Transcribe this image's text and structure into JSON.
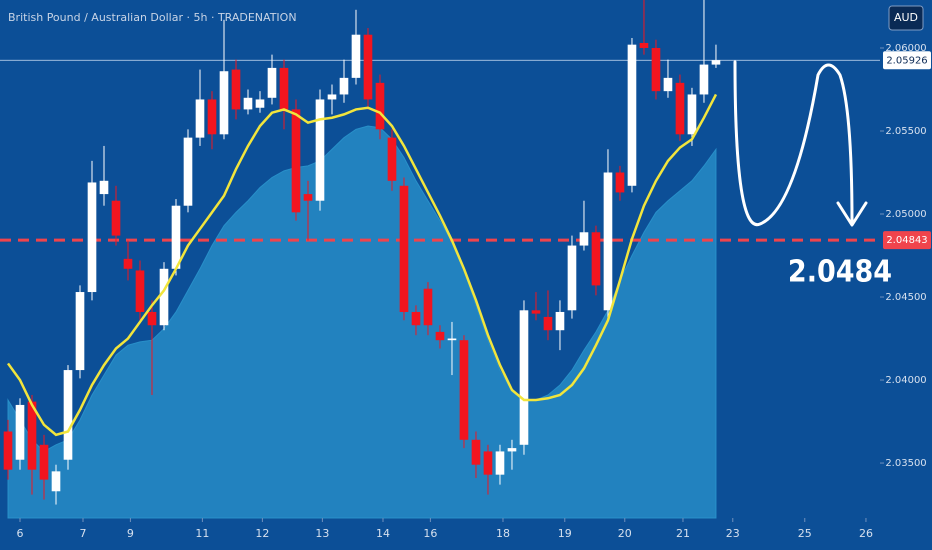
{
  "chart_data": {
    "type": "candlestick",
    "title": "British Pound / Australian Dollar · 5h · TRADENATION",
    "currency": "AUD",
    "annotation": "2.0484",
    "background": "#0c4f97",
    "up_color": "#ffffff",
    "down_color": "#f2151f",
    "level": 2.04843,
    "level_color": "#f0444c",
    "last_price": 2.05926,
    "grid": false,
    "ylim": [
      2.03169,
      2.06289
    ],
    "xlim": [
      -0.667,
      72.67
    ],
    "yticks": [
      {
        "value": 2.035,
        "label": "2.03500"
      },
      {
        "value": 2.04,
        "label": "2.04000"
      },
      {
        "value": 2.045,
        "label": "2.04500"
      },
      {
        "value": 2.05,
        "label": "2.05000"
      },
      {
        "value": 2.055,
        "label": "2.05500"
      },
      {
        "value": 2.06,
        "label": "2.06000"
      }
    ],
    "xticks": [
      {
        "value": 1,
        "label": "6"
      },
      {
        "value": 6.25,
        "label": "7"
      },
      {
        "value": 10.2,
        "label": "9"
      },
      {
        "value": 16.2,
        "label": "11"
      },
      {
        "value": 21.2,
        "label": "12"
      },
      {
        "value": 26.2,
        "label": "13"
      },
      {
        "value": 31.25,
        "label": "14"
      },
      {
        "value": 35.2,
        "label": "16"
      },
      {
        "value": 41.25,
        "label": "18"
      },
      {
        "value": 46.4,
        "label": "19"
      },
      {
        "value": 51.4,
        "label": "20"
      },
      {
        "value": 56.25,
        "label": "21"
      },
      {
        "value": 60.4,
        "label": "23"
      },
      {
        "value": 66.4,
        "label": "25"
      },
      {
        "value": 71.5,
        "label": "26"
      }
    ],
    "open": [
      2.0369,
      2.0352,
      2.0387,
      2.0361,
      2.0333,
      2.0352,
      2.0406,
      2.0453,
      2.0512,
      2.0508,
      2.0473,
      2.0466,
      2.0441,
      2.0433,
      2.0467,
      2.0505,
      2.0546,
      2.0569,
      2.0548,
      2.0587,
      2.0563,
      2.0564,
      2.057,
      2.0588,
      2.0563,
      2.0512,
      2.0508,
      2.0569,
      2.0572,
      2.0582,
      2.0608,
      2.0579,
      2.0546,
      2.0517,
      2.0441,
      2.0455,
      2.0429,
      2.0424,
      2.0424,
      2.0364,
      2.0357,
      2.0343,
      2.0357,
      2.0361,
      2.0442,
      2.0438,
      2.043,
      2.0442,
      2.0481,
      2.0489,
      2.0442,
      2.0525,
      2.0517,
      2.0603,
      2.06,
      2.0574,
      2.0579,
      2.0548,
      2.0572,
      2.059
    ],
    "high": [
      2.0376,
      2.0389,
      2.0391,
      2.0367,
      2.0349,
      2.0409,
      2.0457,
      2.0532,
      2.0541,
      2.0517,
      2.0484,
      2.0472,
      2.0448,
      2.0471,
      2.0509,
      2.0551,
      2.0587,
      2.0574,
      2.0617,
      2.0593,
      2.0575,
      2.0574,
      2.0596,
      2.0593,
      2.0569,
      2.052,
      2.0575,
      2.0578,
      2.0593,
      2.0623,
      2.0612,
      2.0584,
      2.0551,
      2.0522,
      2.0445,
      2.0459,
      2.0433,
      2.0435,
      2.0427,
      2.0369,
      2.0361,
      2.0361,
      2.0364,
      2.0448,
      2.0453,
      2.0454,
      2.0448,
      2.0487,
      2.0508,
      2.0493,
      2.0539,
      2.0529,
      2.0606,
      2.0629,
      2.0605,
      2.0593,
      2.0584,
      2.0576,
      2.0629,
      2.0602
    ],
    "low": [
      2.034,
      2.0346,
      2.0331,
      2.0328,
      2.0325,
      2.0346,
      2.0401,
      2.0448,
      2.0505,
      2.0481,
      2.046,
      2.0436,
      2.0391,
      2.043,
      2.0463,
      2.0501,
      2.0541,
      2.0539,
      2.0545,
      2.0557,
      2.056,
      2.0561,
      2.0566,
      2.0551,
      2.0496,
      2.0484,
      2.0502,
      2.056,
      2.0567,
      2.0578,
      2.0563,
      2.0545,
      2.0514,
      2.0436,
      2.0427,
      2.0427,
      2.0419,
      2.0403,
      2.0359,
      2.0341,
      2.0331,
      2.0337,
      2.0346,
      2.0355,
      2.0436,
      2.0424,
      2.0418,
      2.0437,
      2.0478,
      2.0451,
      2.0437,
      2.0508,
      2.0513,
      2.0596,
      2.0569,
      2.057,
      2.0544,
      2.0541,
      2.0567,
      2.0588
    ],
    "close": [
      2.0346,
      2.0385,
      2.0346,
      2.034,
      2.0345,
      2.0406,
      2.0453,
      2.0519,
      2.052,
      2.0487,
      2.0467,
      2.0441,
      2.0433,
      2.0467,
      2.0505,
      2.0546,
      2.0569,
      2.0548,
      2.0586,
      2.0563,
      2.057,
      2.0569,
      2.0588,
      2.0563,
      2.0501,
      2.0508,
      2.0569,
      2.0572,
      2.0582,
      2.0608,
      2.0569,
      2.0551,
      2.052,
      2.0441,
      2.0433,
      2.0433,
      2.0424,
      2.0425,
      2.0364,
      2.0349,
      2.0343,
      2.0357,
      2.0359,
      2.0442,
      2.044,
      2.043,
      2.0441,
      2.0481,
      2.0489,
      2.0457,
      2.0525,
      2.0513,
      2.0602,
      2.06,
      2.0574,
      2.0582,
      2.0548,
      2.0572,
      2.059,
      2.05926
    ],
    "series": [
      {
        "kind": "area",
        "color": "#2a93cc",
        "values": [
          2.0388,
          2.0376,
          2.0364,
          2.0357,
          2.0361,
          2.0364,
          2.0376,
          2.0391,
          2.0403,
          2.0415,
          2.0421,
          2.0423,
          2.0424,
          2.0431,
          2.0441,
          2.0454,
          2.0467,
          2.0481,
          2.0493,
          2.0501,
          2.0508,
          2.0516,
          2.0522,
          2.0526,
          2.0528,
          2.0529,
          2.0532,
          2.0539,
          2.0546,
          2.0551,
          2.0553,
          2.0552,
          2.0545,
          2.0534,
          2.052,
          2.0508,
          2.0496,
          2.0483,
          2.0466,
          2.0445,
          2.0424,
          2.0406,
          2.0393,
          2.0388,
          2.0388,
          2.0391,
          2.0397,
          2.0406,
          2.0418,
          2.0429,
          2.0442,
          2.046,
          2.0475,
          2.0489,
          2.0501,
          2.0508,
          2.0514,
          2.052,
          2.0529,
          2.0539
        ]
      },
      {
        "kind": "line",
        "color": "#f2e53c",
        "values": [
          2.041,
          2.04,
          2.0385,
          2.0373,
          2.0367,
          2.0369,
          2.0382,
          2.0397,
          2.0409,
          2.0419,
          2.0425,
          2.0435,
          2.0445,
          2.0454,
          2.0467,
          2.0481,
          2.0491,
          2.0501,
          2.0511,
          2.0527,
          2.0541,
          2.0553,
          2.0561,
          2.0563,
          2.056,
          2.0555,
          2.0557,
          2.0558,
          2.056,
          2.0563,
          2.0564,
          2.0561,
          2.0553,
          2.0541,
          2.0527,
          2.0513,
          2.0499,
          2.0484,
          2.0467,
          2.0448,
          2.0427,
          2.0409,
          2.0394,
          2.0388,
          2.0388,
          2.0389,
          2.0391,
          2.0397,
          2.0407,
          2.0421,
          2.0436,
          2.046,
          2.0485,
          2.0505,
          2.052,
          2.0532,
          2.054,
          2.0545,
          2.0558,
          2.0572
        ]
      }
    ]
  }
}
